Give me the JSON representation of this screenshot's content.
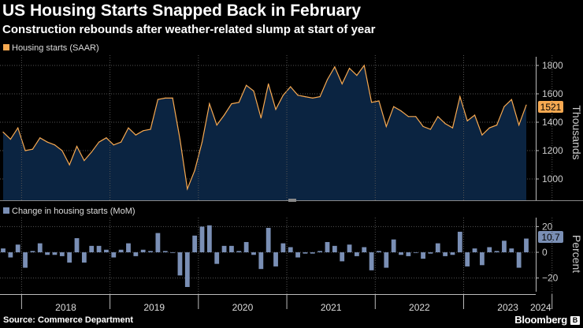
{
  "header": {
    "title": "US Housing Starts Snapped Back in February",
    "subtitle": "Construction rebounds after weather-related slump at start of year"
  },
  "footer": {
    "source": "Source: Commerce Department",
    "brand": "Bloomberg"
  },
  "colors": {
    "background": "#000000",
    "line": "#f7a951",
    "area": "#0b2441",
    "bars": "#7a8fb5",
    "grid": "#555555",
    "axis": "#bbbbbb"
  },
  "chart_data": [
    {
      "type": "area",
      "legend": "Housing starts (SAAR)",
      "ylabel": "Thousands",
      "ylim": [
        850,
        1850
      ],
      "yticks": [
        1000,
        1200,
        1400,
        1600,
        1800
      ],
      "ytick_labels": [
        "1000",
        "1200",
        "1400",
        "1600",
        "1800"
      ],
      "grid": true,
      "latest_label": "1521",
      "x_start": "2017-10",
      "x_step_months": 1,
      "values": [
        1330,
        1280,
        1360,
        1200,
        1210,
        1290,
        1260,
        1240,
        1200,
        1100,
        1230,
        1130,
        1190,
        1260,
        1290,
        1240,
        1260,
        1360,
        1310,
        1340,
        1350,
        1560,
        1570,
        1570,
        1280,
        930,
        1060,
        1260,
        1530,
        1380,
        1450,
        1530,
        1540,
        1660,
        1620,
        1430,
        1670,
        1490,
        1590,
        1650,
        1590,
        1580,
        1570,
        1580,
        1700,
        1790,
        1670,
        1780,
        1730,
        1800,
        1540,
        1550,
        1370,
        1510,
        1480,
        1440,
        1440,
        1370,
        1350,
        1440,
        1390,
        1360,
        1580,
        1410,
        1450,
        1310,
        1360,
        1380,
        1510,
        1560,
        1380,
        1521
      ]
    },
    {
      "type": "bar",
      "legend": "Change in housing starts (MoM)",
      "ylabel": "Percent",
      "ylim": [
        -27,
        27
      ],
      "yticks": [
        -20,
        0,
        20
      ],
      "ytick_labels": [
        "−20",
        "0",
        "20"
      ],
      "latest_label": "10.7",
      "x_start": "2017-10",
      "x_step_months": 1,
      "values": [
        3,
        -4,
        6,
        -12,
        1,
        7,
        -2,
        -2,
        -3,
        -8,
        11,
        -8,
        5,
        5,
        2,
        -4,
        2,
        7,
        -3,
        2,
        1,
        15,
        1,
        0,
        -18,
        -27,
        13,
        20,
        21,
        -9,
        5,
        5,
        1,
        8,
        -2,
        -13,
        19,
        -11,
        7,
        4,
        -4,
        -1,
        -1,
        1,
        8,
        5,
        -7,
        6,
        -3,
        4,
        -14,
        1,
        -12,
        10,
        -2,
        -3,
        0,
        -5,
        -1,
        7,
        -3,
        -2,
        16,
        -11,
        3,
        -10,
        4,
        1,
        9,
        3,
        -12,
        10.7
      ]
    }
  ],
  "x_axis": {
    "year_labels": [
      "2018",
      "2019",
      "2020",
      "2021",
      "2022",
      "2023",
      "2024"
    ]
  }
}
